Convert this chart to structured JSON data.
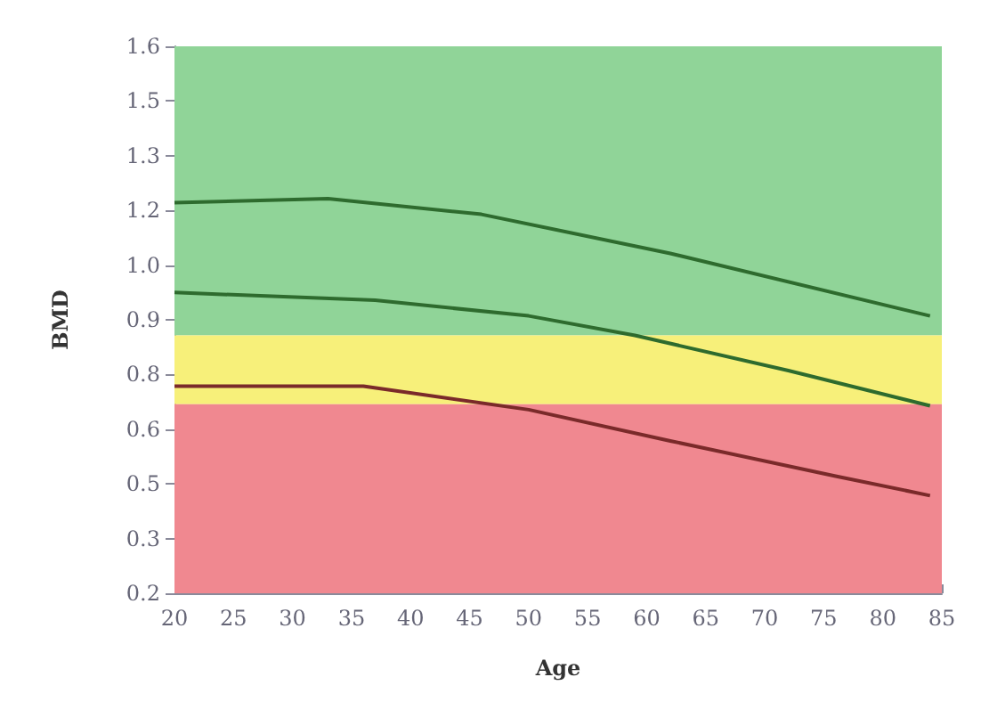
{
  "chart_data": {
    "type": "line",
    "xlabel": "Age",
    "ylabel": "BMD",
    "xlim": [
      20,
      85
    ],
    "xticks": [
      20,
      25,
      30,
      35,
      40,
      45,
      50,
      55,
      60,
      65,
      70,
      75,
      80,
      85
    ],
    "ylim": [
      0.2,
      1.6
    ],
    "yticks": [
      {
        "value": 0.2,
        "label": "0.2"
      },
      {
        "value": 0.34,
        "label": "0.3"
      },
      {
        "value": 0.48,
        "label": "0.5"
      },
      {
        "value": 0.62,
        "label": "0.6"
      },
      {
        "value": 0.76,
        "label": "0.8"
      },
      {
        "value": 0.9,
        "label": "0.9"
      },
      {
        "value": 1.04,
        "label": "1.0"
      },
      {
        "value": 1.18,
        "label": "1.2"
      },
      {
        "value": 1.32,
        "label": "1.3"
      },
      {
        "value": 1.46,
        "label": "1.5"
      },
      {
        "value": 1.6,
        "label": "1.6"
      }
    ],
    "grid": false,
    "marker": "none",
    "line_style": "solid",
    "bands": [
      {
        "axis": "y",
        "from": 0.86,
        "to": 1.6,
        "color": "#90d498"
      },
      {
        "axis": "y",
        "from": 0.684,
        "to": 0.86,
        "color": "#f7f07a"
      },
      {
        "axis": "y",
        "from": 0.2,
        "to": 0.684,
        "color": "#f08890"
      }
    ],
    "series": [
      {
        "color": "#2e6b2e",
        "x": [
          20,
          33,
          46,
          62,
          84
        ],
        "values": [
          1.2,
          1.21,
          1.17,
          1.07,
          0.91
        ]
      },
      {
        "color": "#2e6b2e",
        "x": [
          20,
          37,
          50,
          59,
          72,
          84
        ],
        "values": [
          0.97,
          0.95,
          0.91,
          0.86,
          0.77,
          0.68
        ]
      },
      {
        "color": "#7a2a2a",
        "x": [
          20,
          36,
          50,
          62,
          76,
          84
        ],
        "values": [
          0.73,
          0.73,
          0.67,
          0.59,
          0.5,
          0.45
        ]
      }
    ]
  }
}
